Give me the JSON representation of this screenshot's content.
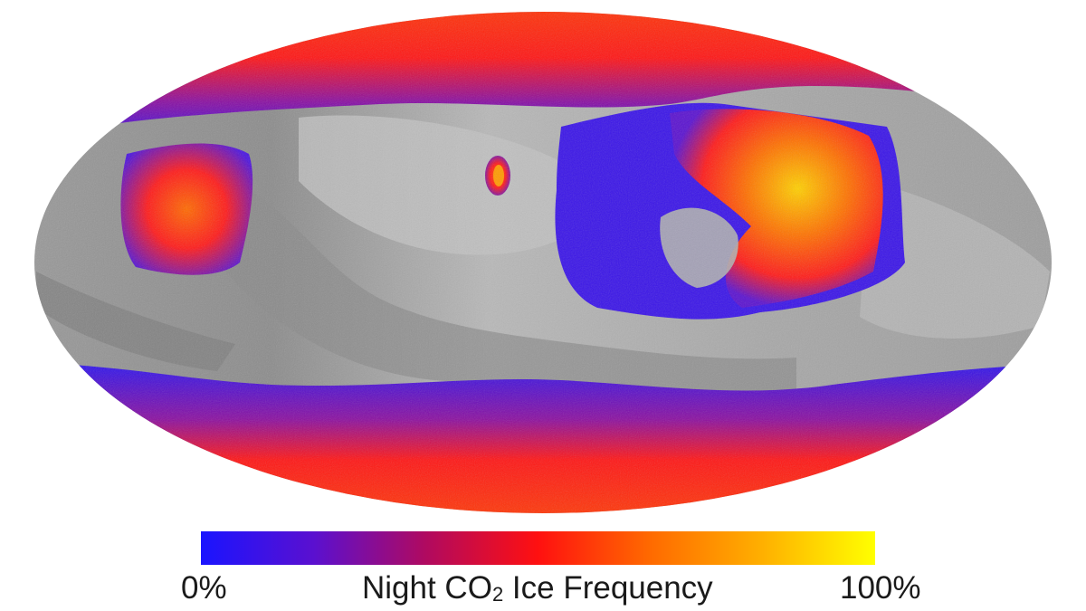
{
  "map": {
    "projection": "Mollweide",
    "layer": "Night CO2 ice frequency over grayscale topography",
    "colors": {
      "low": "#1a14ff",
      "mid_low": "#7a0fb0",
      "mid": "#ff1010",
      "mid_high": "#ff6a00",
      "high": "#ffff00",
      "terrain_light": "#bdbdbd",
      "terrain_dark": "#7a7a7a"
    }
  },
  "colorbar": {
    "min_label": "0%",
    "max_label": "100%",
    "title_prefix": "Night CO",
    "title_subscript": "2",
    "title_suffix": " Ice Frequency",
    "stops": [
      "#1a14ff",
      "#5a10d0",
      "#b00a60",
      "#ff1010",
      "#ff6a00",
      "#ffb000",
      "#ffff00"
    ]
  }
}
